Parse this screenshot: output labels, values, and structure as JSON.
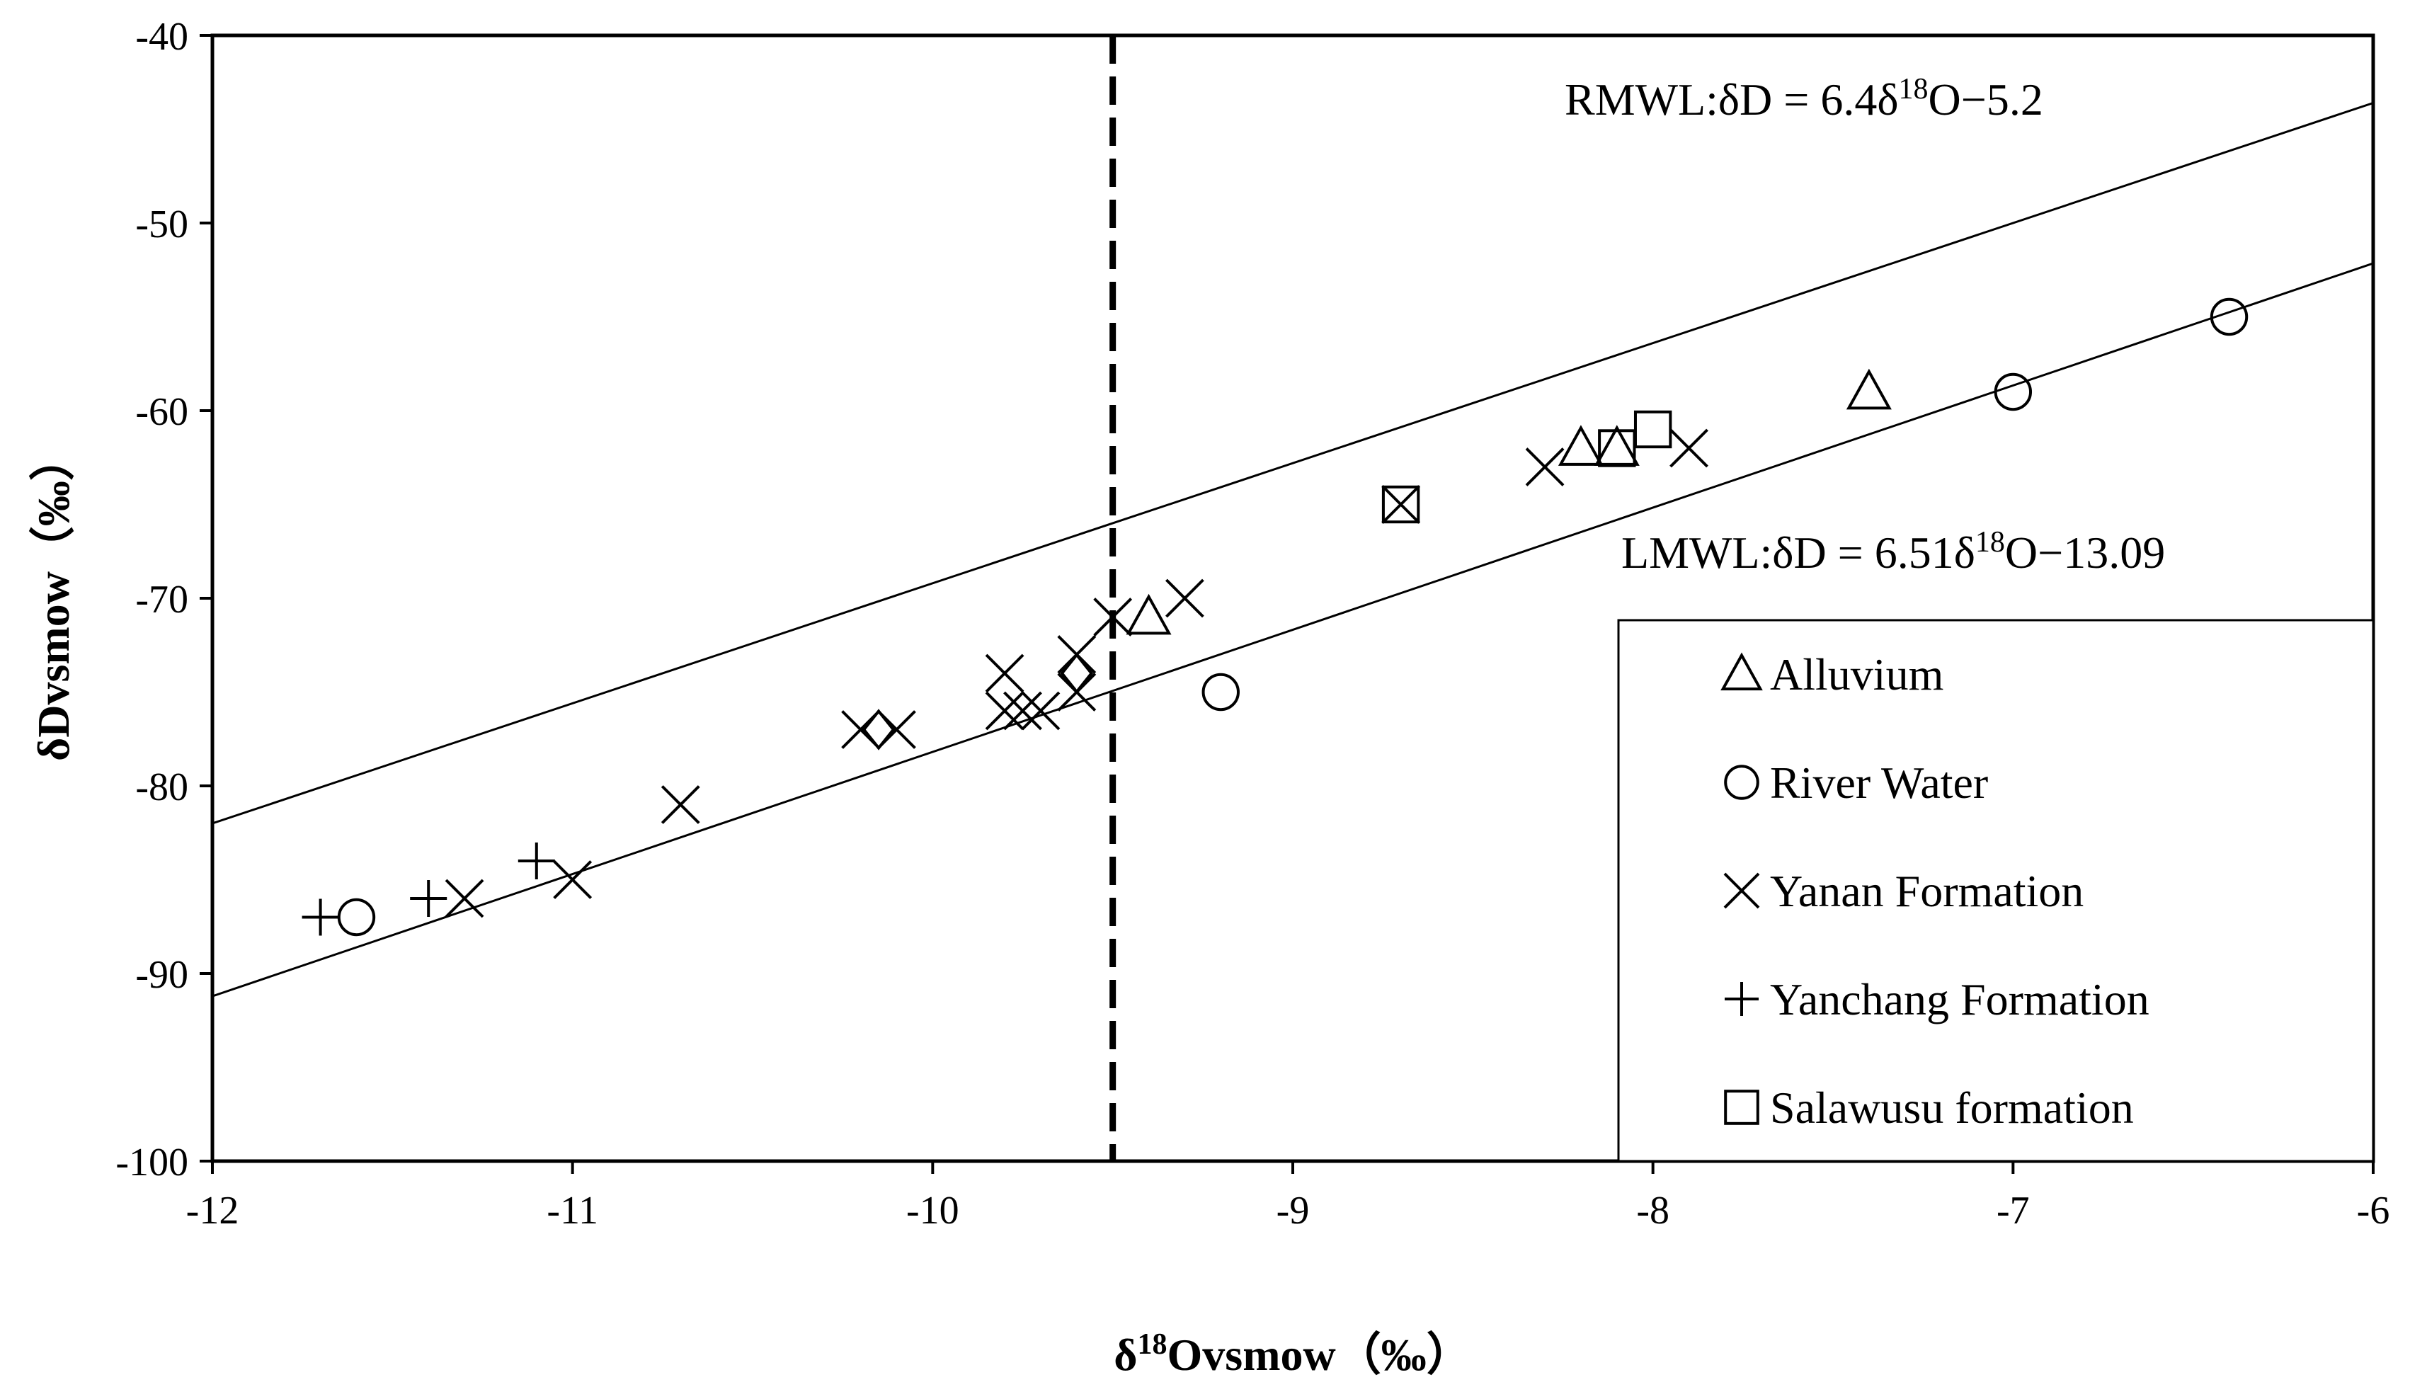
{
  "chart_data": {
    "type": "scatter",
    "title": "",
    "xlabel": "δ18Ovsmow（‰）",
    "xlabel_parts": {
      "prefix": "δ",
      "sup": "18",
      "suffix": "Ovsmow（‰）"
    },
    "ylabel": "δDvsmow（‰）",
    "xlim": [
      -12,
      -6
    ],
    "ylim": [
      -100,
      -40
    ],
    "xticks": [
      -12,
      -11,
      -10,
      -9,
      -8,
      -7,
      -6
    ],
    "yticks": [
      -40,
      -50,
      -60,
      -70,
      -80,
      -90,
      -100
    ],
    "xtick_labels": [
      "-12",
      "-11",
      "-10",
      "-9",
      "-8",
      "-7",
      "-6"
    ],
    "ytick_labels": [
      "-40",
      "-50",
      "-60",
      "-70",
      "-80",
      "-90",
      "-100"
    ],
    "grid": false,
    "legend_position": "bottom-right",
    "reference_lines": [
      {
        "name": "RMWL",
        "slope": 6.4,
        "intercept": -5.2,
        "label": "RMWL:δD = 6.4δ18O−5.2",
        "label_parts": {
          "before": "RMWL:δD = 6.4δ",
          "sup": "18",
          "after": "O−5.2"
        }
      },
      {
        "name": "LMWL",
        "slope": 6.51,
        "intercept": -13.09,
        "label": "LMWL:δD  = 6.51δ18O−13.09",
        "label_parts": {
          "before": "LMWL:δD  = 6.51δ",
          "sup": "18",
          "after": "O−13.09"
        }
      }
    ],
    "vertical_line": {
      "x": -9.5,
      "style": "dashed"
    },
    "series": [
      {
        "name": "Alluvium",
        "marker": "triangle",
        "points": [
          [
            -9.4,
            -71
          ],
          [
            -8.2,
            -62
          ],
          [
            -8.1,
            -62
          ],
          [
            -7.4,
            -59
          ]
        ]
      },
      {
        "name": "River Water",
        "marker": "circle",
        "points": [
          [
            -11.6,
            -87
          ],
          [
            -9.2,
            -75
          ],
          [
            -7.0,
            -59
          ],
          [
            -6.4,
            -55
          ]
        ]
      },
      {
        "name": "Yanan Formation",
        "marker": "x",
        "points": [
          [
            -11.3,
            -86
          ],
          [
            -11.0,
            -85
          ],
          [
            -10.7,
            -81
          ],
          [
            -10.2,
            -77
          ],
          [
            -10.1,
            -77
          ],
          [
            -9.8,
            -74
          ],
          [
            -9.8,
            -76
          ],
          [
            -9.75,
            -76
          ],
          [
            -9.7,
            -76
          ],
          [
            -9.6,
            -73
          ],
          [
            -9.6,
            -75
          ],
          [
            -9.5,
            -71
          ],
          [
            -9.3,
            -70
          ],
          [
            -8.7,
            -65
          ],
          [
            -8.3,
            -63
          ],
          [
            -7.9,
            -62
          ]
        ]
      },
      {
        "name": "Yanchang Formation",
        "marker": "plus",
        "points": [
          [
            -11.7,
            -87
          ],
          [
            -11.4,
            -86
          ],
          [
            -11.1,
            -84
          ]
        ]
      },
      {
        "name": "Salawusu formation",
        "marker": "square",
        "points": [
          [
            -8.7,
            -65
          ],
          [
            -8.1,
            -62
          ],
          [
            -8.0,
            -61
          ]
        ]
      },
      {
        "name": "",
        "marker": "diamond",
        "points": [
          [
            -10.15,
            -77
          ],
          [
            -9.6,
            -74
          ]
        ]
      }
    ],
    "legend": [
      {
        "label": "Alluvium",
        "marker": "triangle"
      },
      {
        "label": "River Water",
        "marker": "circle"
      },
      {
        "label": "Yanan Formation",
        "marker": "x"
      },
      {
        "label": "Yanchang Formation",
        "marker": "plus"
      },
      {
        "label": "Salawusu formation",
        "marker": "square"
      }
    ]
  }
}
